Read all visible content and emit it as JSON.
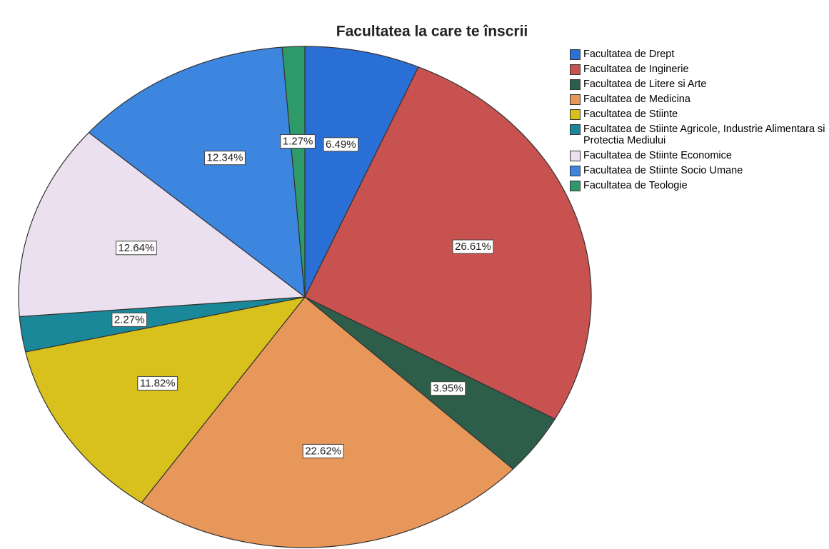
{
  "chart_data": {
    "type": "pie",
    "title": "Facultatea la care te înscrii",
    "categories": [
      "Facultatea de Drept",
      "Facultatea de Inginerie",
      "Facultatea de Litere si Arte",
      "Facultatea de Medicina",
      "Facultatea de Stiinte",
      "Facultatea de Stiinte Agricole, Industrie Alimentara si Protectia Mediului",
      "Facultatea de Stiinte Economice",
      "Facultatea de Stiinte Socio Umane",
      "Facultatea de Teologie"
    ],
    "values": [
      6.49,
      26.61,
      3.95,
      22.62,
      11.82,
      2.27,
      12.64,
      12.34,
      1.27
    ],
    "value_labels": [
      "6.49%",
      "26.61%",
      "3.95%",
      "22.62%",
      "11.82%",
      "2.27%",
      "12.64%",
      "12.34%",
      "1.27%"
    ],
    "colors": [
      "#2a6fd6",
      "#c8524f",
      "#2d5e4a",
      "#e8975a",
      "#d8c11c",
      "#1a8898",
      "#ebe0f0",
      "#3d86e0",
      "#2e9a6a"
    ]
  }
}
